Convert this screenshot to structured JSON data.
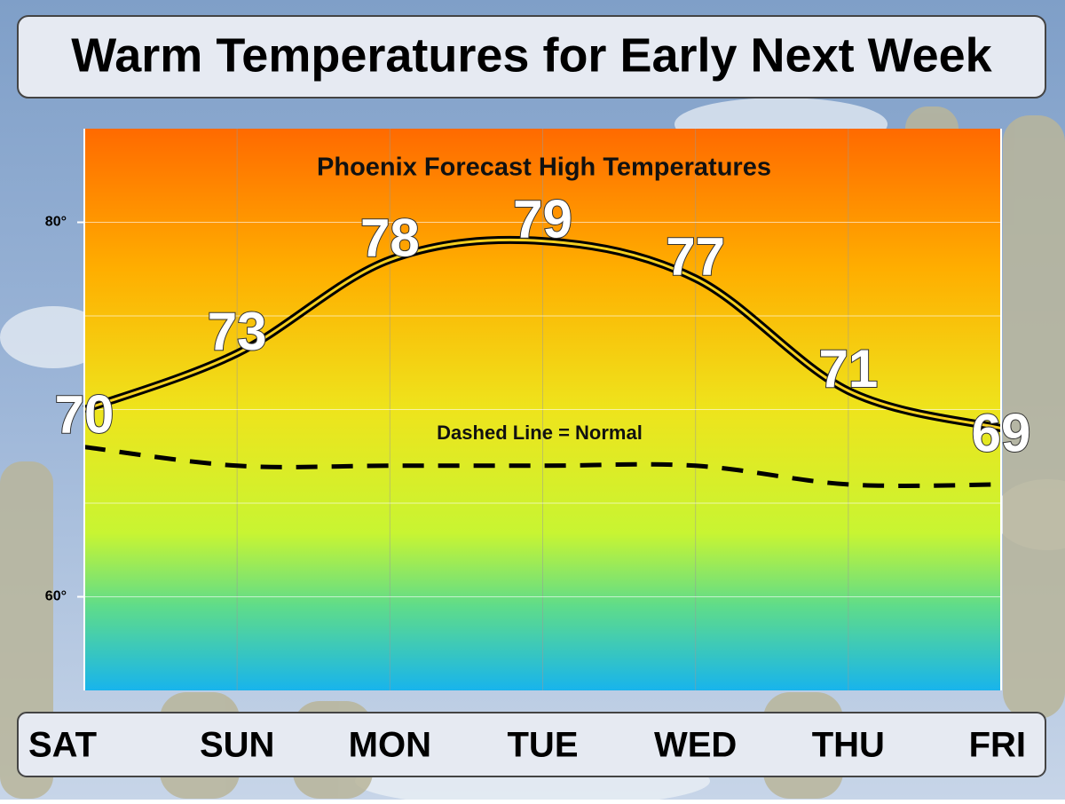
{
  "chart_data": {
    "type": "line",
    "title": "Warm Temperatures for Early Next Week",
    "subtitle": "Phoenix Forecast High Temperatures",
    "annotation": "Dashed Line = Normal",
    "categories": [
      "SAT",
      "SUN",
      "MON",
      "TUE",
      "WED",
      "THU",
      "FRI"
    ],
    "series": [
      {
        "name": "Forecast High",
        "color": "#000000",
        "style": "solid",
        "values": [
          70,
          73,
          78,
          79,
          77,
          71,
          69
        ],
        "value_labels": [
          "70",
          "73",
          "78",
          "79",
          "77",
          "71",
          "69"
        ]
      },
      {
        "name": "Normal",
        "color": "#000000",
        "style": "dashed",
        "values": [
          68,
          67,
          67,
          67,
          67,
          66,
          66
        ]
      }
    ],
    "ylim": [
      55,
      85
    ],
    "yticks": [
      {
        "value": 60,
        "label": "60°"
      },
      {
        "value": 80,
        "label": "80°"
      }
    ],
    "ygrid": [
      60,
      65,
      70,
      75,
      80
    ],
    "grid": true
  }
}
